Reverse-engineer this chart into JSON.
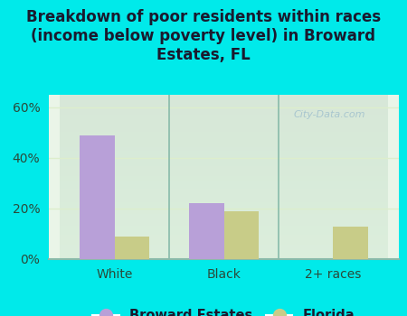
{
  "title": "Breakdown of poor residents within races\n(income below poverty level) in Broward\nEstates, FL",
  "categories": [
    "White",
    "Black",
    "2+ races"
  ],
  "broward_values": [
    49,
    22,
    0
  ],
  "florida_values": [
    9,
    19,
    13
  ],
  "broward_color": "#b8a0d8",
  "florida_color": "#c8cc88",
  "background_color": "#00eaea",
  "plot_bg_color": "#eaf5e8",
  "ylim": [
    0,
    65
  ],
  "yticks": [
    0,
    20,
    40,
    60
  ],
  "ytick_labels": [
    "0%",
    "20%",
    "40%",
    "60%"
  ],
  "title_fontsize": 12,
  "tick_fontsize": 10,
  "legend_fontsize": 10.5,
  "bar_width": 0.32,
  "watermark": "City-Data.com",
  "grid_color": "#ddeecc",
  "separator_color": "#88bbaa",
  "title_color": "#1a1a2e",
  "tick_color": "#2a4a3a"
}
